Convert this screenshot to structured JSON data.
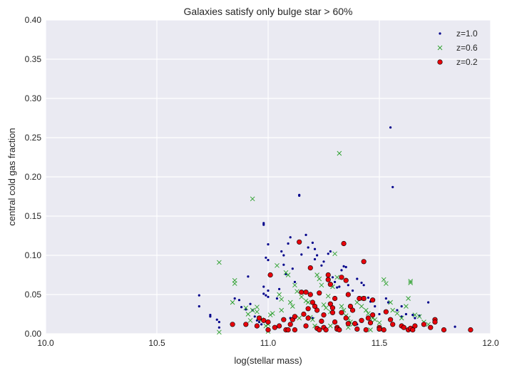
{
  "chart_data": {
    "type": "scatter",
    "title": "Galaxies satisfy only bulge star > 60%",
    "xlabel": "log(stellar mass)",
    "ylabel": "central cold gas fraction",
    "xlim": [
      10.0,
      12.0
    ],
    "ylim": [
      0.0,
      0.4
    ],
    "xticks": [
      "10.0",
      "10.5",
      "11.0",
      "11.5",
      "12.0"
    ],
    "yticks": [
      "0.00",
      "0.05",
      "0.10",
      "0.15",
      "0.20",
      "0.25",
      "0.30",
      "0.35",
      "0.40"
    ],
    "grid": true,
    "legend_position": "top-right",
    "background": "#eaeaf2",
    "series": [
      {
        "name": "z=1.0",
        "marker": "dot",
        "color": "#00008b",
        "points": [
          [
            10.69,
            0.049
          ],
          [
            10.69,
            0.035
          ],
          [
            10.74,
            0.024
          ],
          [
            10.74,
            0.022
          ],
          [
            10.77,
            0.018
          ],
          [
            10.78,
            0.015
          ],
          [
            10.78,
            0.008
          ],
          [
            10.85,
            0.045
          ],
          [
            10.87,
            0.043
          ],
          [
            10.88,
            0.034
          ],
          [
            10.9,
            0.031
          ],
          [
            10.91,
            0.073
          ],
          [
            10.92,
            0.038
          ],
          [
            10.93,
            0.03
          ],
          [
            10.94,
            0.022
          ],
          [
            10.95,
            0.017
          ],
          [
            10.96,
            0.015
          ],
          [
            10.97,
            0.012
          ],
          [
            10.98,
            0.139
          ],
          [
            10.98,
            0.141
          ],
          [
            10.98,
            0.06
          ],
          [
            10.98,
            0.051
          ],
          [
            10.99,
            0.049
          ],
          [
            10.99,
            0.097
          ],
          [
            11.0,
            0.114
          ],
          [
            11.0,
            0.094
          ],
          [
            11.0,
            0.055
          ],
          [
            11.0,
            0.047
          ],
          [
            11.04,
            0.045
          ],
          [
            11.05,
            0.057
          ],
          [
            11.06,
            0.105
          ],
          [
            11.07,
            0.1
          ],
          [
            11.07,
            0.088
          ],
          [
            11.08,
            0.076
          ],
          [
            11.09,
            0.115
          ],
          [
            11.1,
            0.123
          ],
          [
            11.11,
            0.083
          ],
          [
            11.12,
            0.066
          ],
          [
            11.14,
            0.177
          ],
          [
            11.14,
            0.176
          ],
          [
            11.15,
            0.101
          ],
          [
            11.17,
            0.126
          ],
          [
            11.18,
            0.11
          ],
          [
            11.2,
            0.116
          ],
          [
            11.21,
            0.108
          ],
          [
            11.21,
            0.095
          ],
          [
            11.22,
            0.1
          ],
          [
            11.24,
            0.087
          ],
          [
            11.25,
            0.092
          ],
          [
            11.27,
            0.102
          ],
          [
            11.28,
            0.105
          ],
          [
            11.29,
            0.072
          ],
          [
            11.3,
            0.066
          ],
          [
            11.31,
            0.059
          ],
          [
            11.32,
            0.06
          ],
          [
            11.33,
            0.081
          ],
          [
            11.34,
            0.086
          ],
          [
            11.35,
            0.085
          ],
          [
            11.36,
            0.062
          ],
          [
            11.38,
            0.055
          ],
          [
            11.4,
            0.07
          ],
          [
            11.42,
            0.065
          ],
          [
            11.43,
            0.062
          ],
          [
            11.45,
            0.046
          ],
          [
            11.46,
            0.041
          ],
          [
            11.48,
            0.035
          ],
          [
            11.5,
            0.025
          ],
          [
            11.53,
            0.045
          ],
          [
            11.54,
            0.04
          ],
          [
            11.55,
            0.263
          ],
          [
            11.56,
            0.187
          ],
          [
            11.58,
            0.03
          ],
          [
            11.6,
            0.035
          ],
          [
            11.62,
            0.025
          ],
          [
            11.65,
            0.024
          ],
          [
            11.66,
            0.02
          ],
          [
            11.68,
            0.023
          ],
          [
            11.72,
            0.04
          ],
          [
            11.84,
            0.009
          ],
          [
            11.6,
            0.022
          ],
          [
            11.1,
            0.02
          ],
          [
            11.2,
            0.02
          ],
          [
            11.3,
            0.016
          ],
          [
            11.4,
            0.012
          ]
        ]
      },
      {
        "name": "z=0.6",
        "marker": "x",
        "color": "#2ca02c",
        "points": [
          [
            10.78,
            0.091
          ],
          [
            10.78,
            0.002
          ],
          [
            10.84,
            0.04
          ],
          [
            10.85,
            0.064
          ],
          [
            10.85,
            0.068
          ],
          [
            10.9,
            0.033
          ],
          [
            10.91,
            0.025
          ],
          [
            10.93,
            0.172
          ],
          [
            10.93,
            0.03
          ],
          [
            10.95,
            0.028
          ],
          [
            10.95,
            0.034
          ],
          [
            10.96,
            0.02
          ],
          [
            10.97,
            0.018
          ],
          [
            10.99,
            0.01
          ],
          [
            11.0,
            0.003
          ],
          [
            11.01,
            0.024
          ],
          [
            11.02,
            0.026
          ],
          [
            11.04,
            0.087
          ],
          [
            11.05,
            0.05
          ],
          [
            11.06,
            0.044
          ],
          [
            11.06,
            0.03
          ],
          [
            11.08,
            0.078
          ],
          [
            11.09,
            0.075
          ],
          [
            11.1,
            0.04
          ],
          [
            11.11,
            0.035
          ],
          [
            11.12,
            0.062
          ],
          [
            11.13,
            0.054
          ],
          [
            11.15,
            0.047
          ],
          [
            11.17,
            0.042
          ],
          [
            11.18,
            0.04
          ],
          [
            11.19,
            0.021
          ],
          [
            11.2,
            0.018
          ],
          [
            11.22,
            0.075
          ],
          [
            11.23,
            0.07
          ],
          [
            11.24,
            0.062
          ],
          [
            11.25,
            0.037
          ],
          [
            11.26,
            0.033
          ],
          [
            11.27,
            0.048
          ],
          [
            11.28,
            0.028
          ],
          [
            11.29,
            0.06
          ],
          [
            11.3,
            0.102
          ],
          [
            11.31,
            0.072
          ],
          [
            11.32,
            0.23
          ],
          [
            11.33,
            0.035
          ],
          [
            11.34,
            0.03
          ],
          [
            11.35,
            0.023
          ],
          [
            11.36,
            0.02
          ],
          [
            11.37,
            0.015
          ],
          [
            11.38,
            0.012
          ],
          [
            11.4,
            0.04
          ],
          [
            11.42,
            0.035
          ],
          [
            11.43,
            0.045
          ],
          [
            11.44,
            0.03
          ],
          [
            11.45,
            0.026
          ],
          [
            11.47,
            0.02
          ],
          [
            11.48,
            0.018
          ],
          [
            11.5,
            0.014
          ],
          [
            11.52,
            0.069
          ],
          [
            11.53,
            0.064
          ],
          [
            11.55,
            0.04
          ],
          [
            11.56,
            0.03
          ],
          [
            11.58,
            0.026
          ],
          [
            11.6,
            0.02
          ],
          [
            11.62,
            0.035
          ],
          [
            11.63,
            0.045
          ],
          [
            11.64,
            0.067
          ],
          [
            11.64,
            0.065
          ],
          [
            11.66,
            0.024
          ],
          [
            11.68,
            0.022
          ],
          [
            11.7,
            0.015
          ],
          [
            11.72,
            0.012
          ],
          [
            10.92,
            0.017
          ],
          [
            11.0,
            0.012
          ],
          [
            11.14,
            0.02
          ],
          [
            11.21,
            0.01
          ],
          [
            11.28,
            0.01
          ],
          [
            11.36,
            0.008
          ],
          [
            11.46,
            0.005
          ]
        ]
      },
      {
        "name": "z=0.2",
        "marker": "circle",
        "color": "#e8000b",
        "points": [
          [
            10.84,
            0.012
          ],
          [
            10.9,
            0.012
          ],
          [
            10.95,
            0.01
          ],
          [
            10.96,
            0.02
          ],
          [
            10.98,
            0.017
          ],
          [
            11.0,
            0.015
          ],
          [
            11.0,
            0.005
          ],
          [
            11.01,
            0.075
          ],
          [
            11.03,
            0.008
          ],
          [
            11.05,
            0.01
          ],
          [
            11.07,
            0.018
          ],
          [
            11.08,
            0.005
          ],
          [
            11.09,
            0.005
          ],
          [
            11.1,
            0.012
          ],
          [
            11.11,
            0.018
          ],
          [
            11.12,
            0.022
          ],
          [
            11.12,
            0.005
          ],
          [
            11.14,
            0.117
          ],
          [
            11.15,
            0.053
          ],
          [
            11.16,
            0.025
          ],
          [
            11.17,
            0.01
          ],
          [
            11.17,
            0.053
          ],
          [
            11.18,
            0.02
          ],
          [
            11.19,
            0.084
          ],
          [
            11.19,
            0.05
          ],
          [
            11.2,
            0.04
          ],
          [
            11.21,
            0.035
          ],
          [
            11.22,
            0.03
          ],
          [
            11.22,
            0.007
          ],
          [
            11.23,
            0.005
          ],
          [
            11.24,
            0.016
          ],
          [
            11.25,
            0.024
          ],
          [
            11.25,
            0.008
          ],
          [
            11.26,
            0.005
          ],
          [
            11.27,
            0.075
          ],
          [
            11.27,
            0.069
          ],
          [
            11.28,
            0.063
          ],
          [
            11.28,
            0.038
          ],
          [
            11.29,
            0.027
          ],
          [
            11.3,
            0.045
          ],
          [
            11.3,
            0.015
          ],
          [
            11.31,
            0.008
          ],
          [
            11.31,
            0.006
          ],
          [
            11.32,
            0.005
          ],
          [
            11.33,
            0.072
          ],
          [
            11.33,
            0.027
          ],
          [
            11.34,
            0.115
          ],
          [
            11.35,
            0.068
          ],
          [
            11.35,
            0.02
          ],
          [
            11.36,
            0.013
          ],
          [
            11.36,
            0.05
          ],
          [
            11.37,
            0.035
          ],
          [
            11.38,
            0.03
          ],
          [
            11.39,
            0.013
          ],
          [
            11.4,
            0.006
          ],
          [
            11.41,
            0.045
          ],
          [
            11.42,
            0.017
          ],
          [
            11.43,
            0.045
          ],
          [
            11.43,
            0.092
          ],
          [
            11.44,
            0.005
          ],
          [
            11.45,
            0.02
          ],
          [
            11.46,
            0.014
          ],
          [
            11.47,
            0.024
          ],
          [
            11.47,
            0.043
          ],
          [
            11.5,
            0.008
          ],
          [
            11.5,
            0.006
          ],
          [
            11.52,
            0.005
          ],
          [
            11.53,
            0.028
          ],
          [
            11.55,
            0.018
          ],
          [
            11.56,
            0.012
          ],
          [
            11.6,
            0.01
          ],
          [
            11.61,
            0.008
          ],
          [
            11.63,
            0.005
          ],
          [
            11.64,
            0.007
          ],
          [
            11.65,
            0.005
          ],
          [
            11.66,
            0.01
          ],
          [
            11.7,
            0.012
          ],
          [
            11.73,
            0.008
          ],
          [
            11.75,
            0.018
          ],
          [
            11.75,
            0.015
          ],
          [
            11.79,
            0.005
          ],
          [
            11.91,
            0.005
          ],
          [
            11.23,
            0.052
          ],
          [
            11.29,
            0.033
          ],
          [
            11.18,
            0.032
          ]
        ]
      }
    ]
  }
}
